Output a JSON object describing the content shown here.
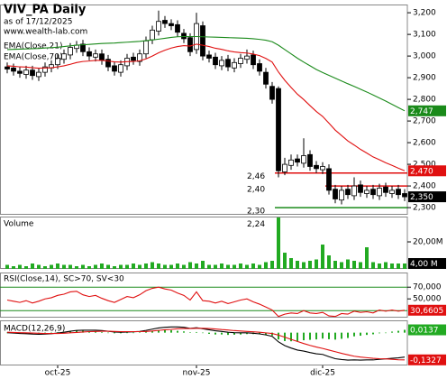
{
  "chart_data": [
    {
      "type": "candlestick",
      "title": "VIV_PA Daily",
      "subtitle": "as of 17/12/2025",
      "source": "www.wealth-lab.com",
      "categories": [
        null,
        null,
        null,
        null,
        null,
        null,
        null,
        null,
        "oct-25",
        null,
        null,
        null,
        null,
        null,
        null,
        null,
        null,
        null,
        null,
        null,
        null,
        null,
        null,
        null,
        null,
        null,
        null,
        null,
        null,
        null,
        "nov-25",
        null,
        null,
        null,
        null,
        null,
        null,
        null,
        null,
        null,
        null,
        null,
        null,
        null,
        null,
        null,
        null,
        null,
        null,
        null,
        "dic-25",
        null,
        null,
        null,
        null,
        null,
        null,
        null,
        null,
        null,
        null,
        null,
        null,
        null
      ],
      "open": [
        2950,
        2945,
        2930,
        2915,
        2935,
        2905,
        2925,
        2945,
        2960,
        2985,
        3005,
        3035,
        3055,
        3020,
        2995,
        3010,
        2985,
        2955,
        2925,
        2955,
        2995,
        2975,
        3010,
        3075,
        3115,
        3165,
        3150,
        3145,
        3105,
        3085,
        3030,
        3140,
        3005,
        2995,
        2955,
        2985,
        2945,
        2965,
        2985,
        3005,
        2965,
        2925,
        2860,
        2850,
        2465,
        2495,
        2525,
        2505,
        2545,
        2495,
        2475,
        2480,
        2385,
        2335,
        2385,
        2355,
        2405,
        2365,
        2385,
        2355,
        2395,
        2365,
        2385,
        2365
      ],
      "high": [
        2970,
        2965,
        2950,
        2955,
        2955,
        2945,
        2970,
        2980,
        3010,
        3030,
        3060,
        3070,
        3075,
        3040,
        3030,
        3030,
        3005,
        2975,
        2980,
        3010,
        3015,
        3030,
        3090,
        3140,
        3210,
        3185,
        3170,
        3165,
        3125,
        3105,
        3200,
        3160,
        3025,
        3015,
        3000,
        3005,
        2990,
        3010,
        3030,
        3025,
        2985,
        2945,
        2880,
        2860,
        2530,
        2545,
        2545,
        2620,
        2565,
        2515,
        2510,
        2500,
        2405,
        2400,
        2405,
        2440,
        2425,
        2400,
        2405,
        2410,
        2415,
        2400,
        2405,
        2385
      ],
      "low": [
        2920,
        2910,
        2900,
        2895,
        2890,
        2885,
        2905,
        2925,
        2940,
        2965,
        2985,
        3015,
        3000,
        2980,
        2975,
        2960,
        2930,
        2910,
        2905,
        2935,
        2960,
        2955,
        2990,
        3055,
        3095,
        3130,
        3120,
        3090,
        3060,
        3000,
        3010,
        2980,
        2970,
        2940,
        2935,
        2930,
        2925,
        2945,
        2965,
        2940,
        2910,
        2850,
        2780,
        2440,
        2450,
        2475,
        2490,
        2485,
        2470,
        2460,
        2455,
        2360,
        2320,
        2315,
        2340,
        2335,
        2350,
        2345,
        2340,
        2335,
        2350,
        2345,
        2340,
        2330
      ],
      "close": [
        2940,
        2930,
        2920,
        2935,
        2910,
        2925,
        2950,
        2960,
        2990,
        3010,
        3040,
        3050,
        3020,
        3000,
        3010,
        2980,
        2950,
        2930,
        2960,
        2990,
        2980,
        3010,
        3070,
        3120,
        3160,
        3150,
        3140,
        3110,
        3080,
        3020,
        3150,
        3000,
        2990,
        2960,
        2980,
        2950,
        2970,
        2990,
        3000,
        2960,
        2930,
        2870,
        2800,
        2470,
        2500,
        2520,
        2510,
        2540,
        2490,
        2480,
        2490,
        2380,
        2340,
        2380,
        2360,
        2400,
        2370,
        2380,
        2360,
        2390,
        2370,
        2380,
        2360,
        2350
      ],
      "close_label": "2,350",
      "series": [
        {
          "name": "EMA(Close,21)",
          "color": "#e01010",
          "last_label": "2,470",
          "values": [
            2955,
            2953,
            2950,
            2949,
            2946,
            2944,
            2945,
            2946,
            2950,
            2955,
            2962,
            2970,
            2975,
            2977,
            2980,
            2980,
            2977,
            2973,
            2972,
            2974,
            2975,
            2978,
            2987,
            3000,
            3015,
            3027,
            3037,
            3044,
            3048,
            3046,
            3055,
            3050,
            3044,
            3036,
            3031,
            3024,
            3019,
            3016,
            3014,
            3009,
            3002,
            2989,
            2972,
            2926,
            2888,
            2855,
            2824,
            2799,
            2771,
            2744,
            2721,
            2690,
            2658,
            2633,
            2608,
            2589,
            2569,
            2552,
            2534,
            2521,
            2507,
            2495,
            2482,
            2470
          ]
        },
        {
          "name": "EMA(Close,70)",
          "color": "#1a8a1a",
          "last_label": "2,747",
          "values": [
            3030,
            3031,
            3032,
            3033,
            3034,
            3035,
            3037,
            3039,
            3041,
            3044,
            3047,
            3050,
            3052,
            3054,
            3056,
            3058,
            3059,
            3060,
            3062,
            3064,
            3066,
            3068,
            3071,
            3074,
            3078,
            3082,
            3086,
            3089,
            3090,
            3090,
            3090,
            3089,
            3088,
            3087,
            3086,
            3085,
            3084,
            3083,
            3082,
            3080,
            3077,
            3073,
            3066,
            3050,
            3030,
            3010,
            2990,
            2972,
            2955,
            2938,
            2924,
            2911,
            2898,
            2885,
            2872,
            2860,
            2847,
            2834,
            2820,
            2806,
            2792,
            2777,
            2762,
            2747
          ]
        }
      ],
      "levels": [
        {
          "value": 2460,
          "label": "2,46",
          "color": "#e01010"
        },
        {
          "value": 2400,
          "label": "2,40",
          "color": "#e01010"
        },
        {
          "value": 2300,
          "label": "2,30",
          "color": "#1a8a1a"
        },
        {
          "value": 2240,
          "label": "2,24"
        }
      ],
      "ylim": [
        2267,
        3238
      ],
      "yticks": [
        {
          "value": 2300,
          "label": "2,300"
        },
        {
          "value": 2400,
          "label": "2,400"
        },
        {
          "value": 2500,
          "label": "2,500"
        },
        {
          "value": 2600,
          "label": "2,600"
        },
        {
          "value": 2700,
          "label": "2,700"
        },
        {
          "value": 2800,
          "label": "2,800"
        },
        {
          "value": 2900,
          "label": "2,900"
        },
        {
          "value": 3000,
          "label": "3,000"
        },
        {
          "value": 3100,
          "label": "3,100"
        },
        {
          "value": 3200,
          "label": "3,200"
        }
      ]
    },
    {
      "type": "bar",
      "title": "Volume",
      "color": "#22aa22",
      "last_label": "4,00 M",
      "values": [
        3,
        2,
        3,
        2,
        4,
        3,
        2,
        3,
        4,
        3,
        3,
        2,
        3,
        2,
        3,
        4,
        3,
        2,
        3,
        3,
        4,
        3,
        4,
        5,
        4,
        3,
        3,
        4,
        3,
        5,
        4,
        6,
        3,
        3,
        4,
        3,
        3,
        4,
        3,
        4,
        3,
        5,
        6,
        38,
        12,
        8,
        6,
        5,
        6,
        7,
        18,
        10,
        6,
        5,
        7,
        6,
        5,
        16,
        5,
        4,
        5,
        4,
        4,
        4
      ],
      "ylim": [
        0,
        38.7
      ],
      "yticks": [
        {
          "value": 20,
          "label": "20,00M"
        }
      ]
    },
    {
      "type": "line",
      "title": "RSI(Close,14), SC>70, SV<30",
      "series": [
        {
          "color": "#e01010",
          "last_label": "30,6605",
          "values": [
            48,
            46,
            44,
            47,
            43,
            46,
            50,
            52,
            56,
            58,
            62,
            63,
            57,
            54,
            56,
            51,
            47,
            44,
            49,
            54,
            52,
            57,
            64,
            68,
            70,
            67,
            65,
            60,
            56,
            48,
            62,
            47,
            46,
            43,
            46,
            42,
            45,
            48,
            50,
            45,
            41,
            36,
            31,
            20,
            24,
            26,
            25,
            30,
            26,
            25,
            27,
            21,
            20,
            25,
            24,
            29,
            27,
            28,
            26,
            31,
            29,
            31,
            29,
            30.6605
          ]
        }
      ],
      "bands": [
        70,
        30
      ],
      "band_color": "#1a8a1a",
      "ylim": [
        18,
        95
      ],
      "yticks": [
        {
          "value": 70,
          "label": "70,000"
        },
        {
          "value": 50,
          "label": "50,000"
        }
      ]
    },
    {
      "type": "macd",
      "title": "MACD(12,26,9)",
      "series": [
        {
          "color": "#000000",
          "values": [
            0,
            -0.002,
            -0.004,
            -0.005,
            -0.007,
            -0.008,
            -0.007,
            -0.005,
            -0.002,
            0.002,
            0.007,
            0.011,
            0.012,
            0.012,
            0.012,
            0.01,
            0.007,
            0.003,
            0.002,
            0.003,
            0.004,
            0.006,
            0.011,
            0.017,
            0.023,
            0.026,
            0.028,
            0.028,
            0.026,
            0.021,
            0.024,
            0.019,
            0.014,
            0.009,
            0.006,
            0.002,
            0,
            -0.001,
            -0.001,
            -0.003,
            -0.006,
            -0.011,
            -0.018,
            -0.045,
            -0.063,
            -0.075,
            -0.085,
            -0.09,
            -0.097,
            -0.103,
            -0.106,
            -0.117,
            -0.127,
            -0.131,
            -0.134,
            -0.133,
            -0.134,
            -0.133,
            -0.133,
            -0.13,
            -0.128,
            -0.125,
            -0.123,
            -0.119
          ]
        },
        {
          "color": "#e01010",
          "last_label": "-0,1327",
          "values": [
            0.002,
            0.001,
            0,
            -0.001,
            -0.002,
            -0.003,
            -0.004,
            -0.004,
            -0.004,
            -0.003,
            -0.001,
            0.001,
            0.003,
            0.005,
            0.006,
            0.007,
            0.007,
            0.006,
            0.005,
            0.005,
            0.005,
            0.005,
            0.006,
            0.008,
            0.011,
            0.014,
            0.016,
            0.019,
            0.02,
            0.02,
            0.021,
            0.021,
            0.02,
            0.018,
            0.015,
            0.013,
            0.01,
            0.008,
            0.006,
            0.004,
            0.002,
            -0.001,
            -0.004,
            -0.012,
            -0.022,
            -0.033,
            -0.043,
            -0.053,
            -0.062,
            -0.07,
            -0.077,
            -0.085,
            -0.093,
            -0.101,
            -0.108,
            -0.115,
            -0.119,
            -0.122,
            -0.125,
            -0.127,
            -0.128,
            -0.13,
            -0.132,
            -0.1327
          ]
        }
      ],
      "histogram": {
        "color": "#22aa22",
        "last_label": "0,0137",
        "values": [
          -0.002,
          -0.003,
          -0.004,
          -0.004,
          -0.005,
          -0.005,
          -0.003,
          -0.001,
          0.002,
          0.005,
          0.008,
          0.01,
          0.009,
          0.007,
          0.006,
          0.003,
          0,
          -0.003,
          -0.003,
          -0.002,
          -0.001,
          0.001,
          0.005,
          0.009,
          0.012,
          0.012,
          0.012,
          0.009,
          0.006,
          0.001,
          0.003,
          -0.002,
          -0.006,
          -0.009,
          -0.009,
          -0.011,
          -0.01,
          -0.009,
          -0.007,
          -0.007,
          -0.008,
          -0.01,
          -0.014,
          -0.033,
          -0.041,
          -0.042,
          -0.042,
          -0.037,
          -0.035,
          -0.033,
          -0.029,
          -0.032,
          -0.034,
          -0.03,
          -0.026,
          -0.018,
          -0.015,
          -0.011,
          -0.008,
          -0.003,
          0,
          0.005,
          0.009,
          0.0137
        ]
      },
      "ylim": [
        -0.16,
        0.06
      ],
      "yticks": []
    }
  ]
}
